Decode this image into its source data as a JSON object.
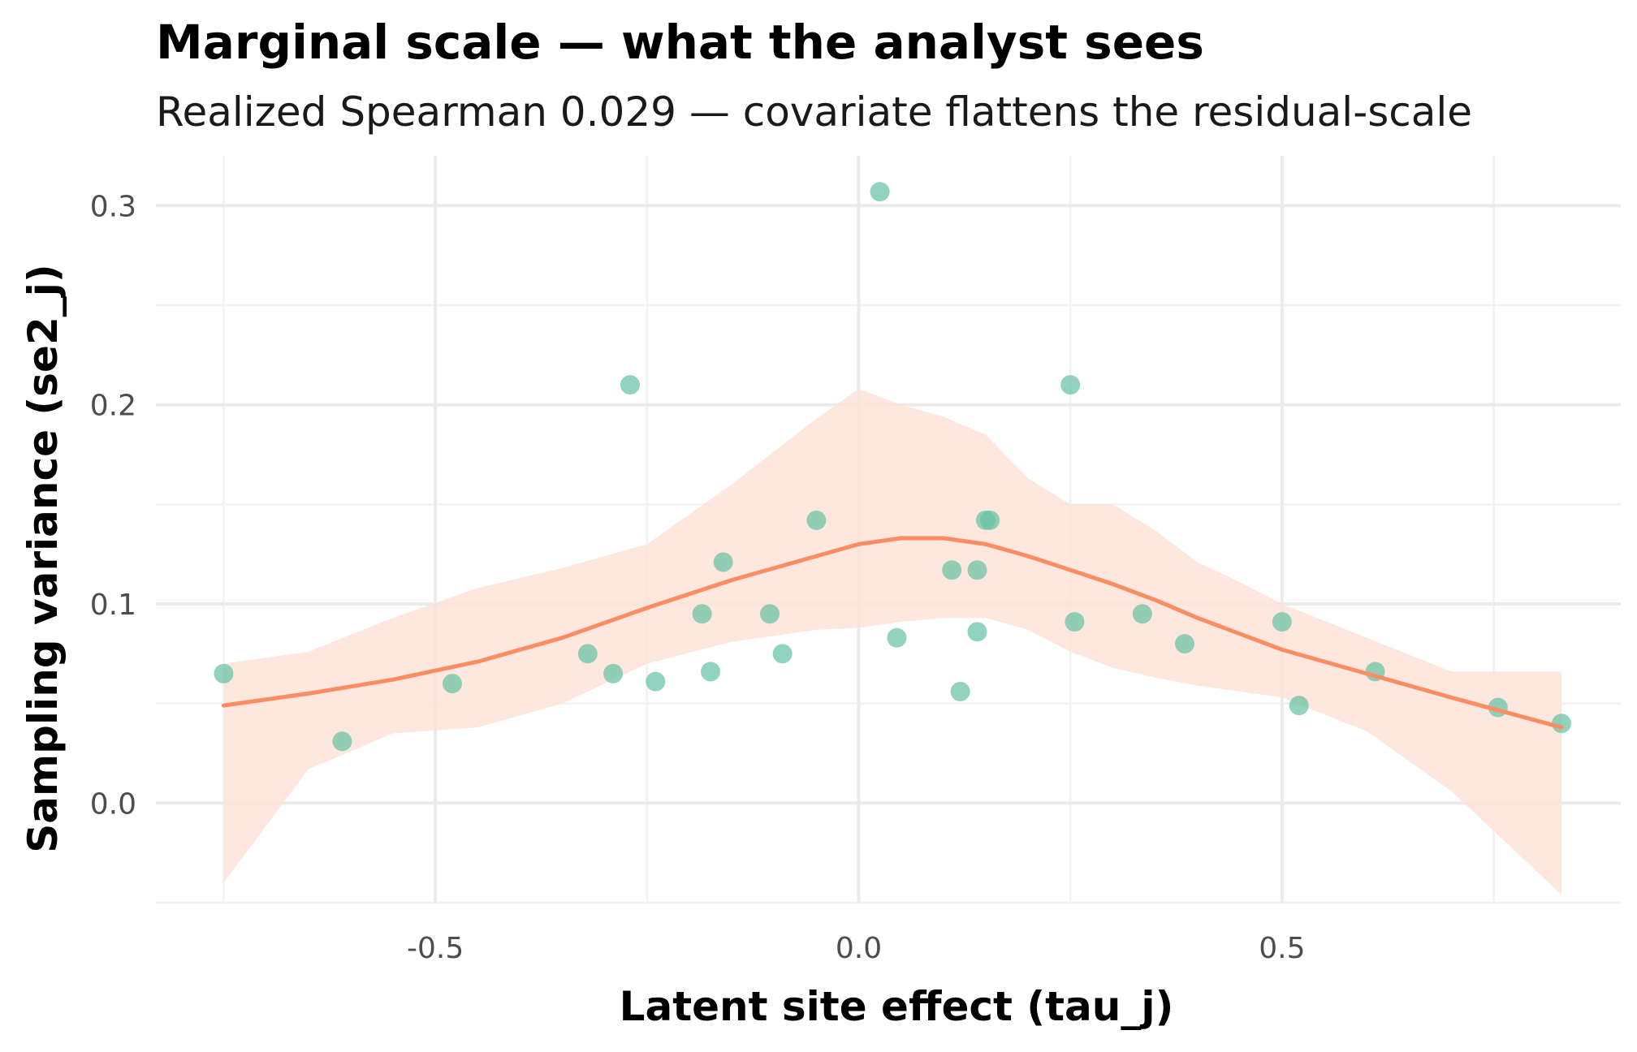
{
  "chart_data": {
    "type": "scatter",
    "title": "Marginal scale — what the analyst sees",
    "subtitle": "Realized Spearman 0.029 — covariate flattens the residual-scale",
    "xlabel": "Latent site effect (tau_j)",
    "ylabel": "Sampling variance (se2_j)",
    "xlim": [
      -0.83,
      0.9
    ],
    "ylim": [
      -0.05,
      0.325
    ],
    "x_ticks": [
      -0.5,
      0.0,
      0.5
    ],
    "x_tick_labels": [
      "-0.5",
      "0.0",
      "0.5"
    ],
    "y_ticks": [
      0.0,
      0.1,
      0.2,
      0.3
    ],
    "y_tick_labels": [
      "0.0",
      "0.1",
      "0.2",
      "0.3"
    ],
    "grid": true,
    "point_color": "#66c2a5",
    "smooth_color": "#fc8d62",
    "band_color": "#fde3d9",
    "points": [
      {
        "x": -0.75,
        "y": 0.065
      },
      {
        "x": -0.61,
        "y": 0.031
      },
      {
        "x": -0.48,
        "y": 0.06
      },
      {
        "x": -0.32,
        "y": 0.075
      },
      {
        "x": -0.29,
        "y": 0.065
      },
      {
        "x": -0.27,
        "y": 0.21
      },
      {
        "x": -0.24,
        "y": 0.061
      },
      {
        "x": -0.185,
        "y": 0.095
      },
      {
        "x": -0.175,
        "y": 0.066
      },
      {
        "x": -0.16,
        "y": 0.121
      },
      {
        "x": -0.105,
        "y": 0.095
      },
      {
        "x": -0.09,
        "y": 0.075
      },
      {
        "x": -0.05,
        "y": 0.142
      },
      {
        "x": 0.025,
        "y": 0.307
      },
      {
        "x": 0.045,
        "y": 0.083
      },
      {
        "x": 0.11,
        "y": 0.117
      },
      {
        "x": 0.12,
        "y": 0.056
      },
      {
        "x": 0.14,
        "y": 0.117
      },
      {
        "x": 0.14,
        "y": 0.086
      },
      {
        "x": 0.15,
        "y": 0.142
      },
      {
        "x": 0.155,
        "y": 0.142
      },
      {
        "x": 0.25,
        "y": 0.21
      },
      {
        "x": 0.255,
        "y": 0.091
      },
      {
        "x": 0.335,
        "y": 0.095
      },
      {
        "x": 0.385,
        "y": 0.08
      },
      {
        "x": 0.5,
        "y": 0.091
      },
      {
        "x": 0.52,
        "y": 0.049
      },
      {
        "x": 0.61,
        "y": 0.066
      },
      {
        "x": 0.755,
        "y": 0.048
      },
      {
        "x": 0.83,
        "y": 0.04
      }
    ],
    "smooth": {
      "x": [
        -0.75,
        -0.65,
        -0.55,
        -0.45,
        -0.35,
        -0.25,
        -0.15,
        -0.05,
        0.0,
        0.05,
        0.1,
        0.15,
        0.2,
        0.25,
        0.3,
        0.35,
        0.4,
        0.45,
        0.5,
        0.6,
        0.7,
        0.83
      ],
      "y": [
        0.049,
        0.055,
        0.062,
        0.071,
        0.083,
        0.098,
        0.112,
        0.124,
        0.13,
        0.133,
        0.133,
        0.13,
        0.124,
        0.117,
        0.11,
        0.102,
        0.093,
        0.085,
        0.077,
        0.065,
        0.053,
        0.038
      ],
      "lower": [
        -0.04,
        0.017,
        0.035,
        0.038,
        0.05,
        0.07,
        0.081,
        0.087,
        0.088,
        0.091,
        0.093,
        0.093,
        0.087,
        0.076,
        0.068,
        0.063,
        0.059,
        0.056,
        0.053,
        0.036,
        0.006,
        -0.046
      ],
      "upper": [
        0.07,
        0.076,
        0.093,
        0.108,
        0.118,
        0.13,
        0.16,
        0.193,
        0.208,
        0.2,
        0.194,
        0.185,
        0.163,
        0.15,
        0.15,
        0.137,
        0.121,
        0.111,
        0.1,
        0.083,
        0.066,
        0.066
      ]
    }
  }
}
